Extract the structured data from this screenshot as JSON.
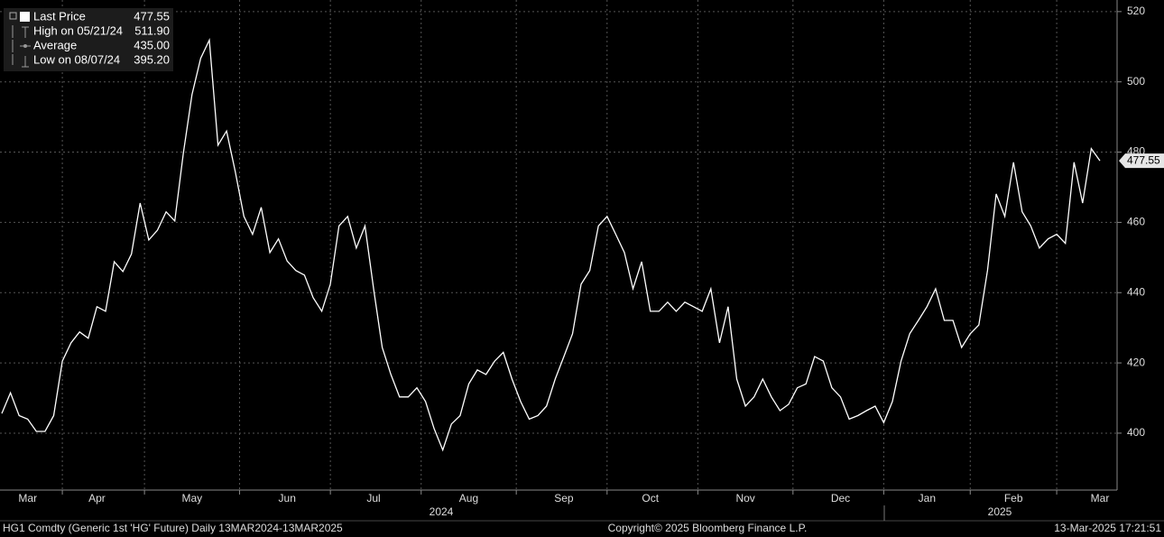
{
  "chart_data": {
    "type": "line",
    "categories": [
      null,
      null,
      null,
      "Mar",
      null,
      null,
      null,
      null,
      null,
      null,
      null,
      "Apr",
      null,
      null,
      null,
      null,
      null,
      null,
      null,
      null,
      null,
      null,
      "May",
      null,
      null,
      null,
      null,
      null,
      null,
      null,
      null,
      null,
      null,
      "Jun",
      null,
      null,
      null,
      null,
      null,
      null,
      null,
      null,
      null,
      "Jul",
      null,
      null,
      null,
      null,
      null,
      null,
      null,
      null,
      null,
      null,
      "Aug",
      null,
      null,
      null,
      null,
      null,
      null,
      null,
      null,
      null,
      null,
      "Sep",
      null,
      null,
      null,
      null,
      null,
      null,
      null,
      null,
      null,
      "Oct",
      null,
      null,
      null,
      null,
      null,
      null,
      null,
      null,
      null,
      null,
      "Nov",
      null,
      null,
      null,
      null,
      null,
      null,
      null,
      null,
      null,
      null,
      "Dec",
      null,
      null,
      null,
      null,
      null,
      null,
      null,
      null,
      null,
      "Jan",
      null,
      null,
      null,
      null,
      null,
      null,
      null,
      null,
      null,
      "Feb",
      null,
      null,
      null,
      null,
      null,
      null,
      null,
      null,
      null,
      "Mar"
    ],
    "series": [
      {
        "name": "Last Price",
        "color": "#ffffff",
        "values": [
          405.6,
          411.5,
          405,
          404,
          400.5,
          400.5,
          405,
          420.5,
          425.7,
          428.8,
          427,
          436,
          434.7,
          448.8,
          446,
          451,
          465.5,
          455,
          457.8,
          463,
          460.4,
          479.7,
          496.4,
          506.7,
          511.9,
          482,
          486,
          474.5,
          461.7,
          456.6,
          464.3,
          451.4,
          455.3,
          449,
          446.3,
          445,
          438.6,
          434.7,
          442.4,
          459,
          461.7,
          452.7,
          459,
          441,
          424.4,
          416.7,
          410.3,
          410.3,
          412.9,
          409,
          401.3,
          395.2,
          402.6,
          405,
          414,
          418,
          416.7,
          420.5,
          423,
          415.4,
          409,
          404,
          405,
          407.7,
          415.4,
          421.8,
          428.3,
          442.4,
          446.3,
          459,
          461.7,
          456.6,
          451.4,
          441.1,
          448.8,
          434.7,
          434.7,
          437.3,
          434.7,
          437.3,
          436,
          434.7,
          441.1,
          425.7,
          436,
          415.4,
          407.7,
          410.3,
          415.4,
          410.3,
          406.4,
          408.2,
          412.9,
          414,
          421.8,
          420.5,
          412.9,
          410.3,
          404,
          405,
          406.4,
          407.7,
          403,
          409,
          420.5,
          428.3,
          432.1,
          436,
          441.1,
          432.1,
          432.1,
          424.4,
          428.3,
          430.8,
          446.3,
          468.1,
          461.7,
          477.1,
          463,
          459,
          452.7,
          455.3,
          456.6,
          454,
          477.1,
          465.5,
          481,
          477.55
        ]
      }
    ],
    "ylim": [
      383.8,
      523.3
    ],
    "yticks": [
      400,
      420,
      440,
      460,
      480,
      500,
      520
    ],
    "grid": true,
    "stats": [
      {
        "label": "High on 05/21/24",
        "value": 511.9,
        "value_label": "511.90"
      },
      {
        "label": "Average",
        "value": 435,
        "value_label": "435.00"
      },
      {
        "label": "Low on 08/07/24",
        "value": 395.2,
        "value_label": "395.20"
      }
    ],
    "year_labels": [
      "2024",
      "2025"
    ],
    "footer": {
      "left": "HG1 Comdty (Generic 1st 'HG' Future)  Daily 13MAR2024-13MAR2025",
      "center": "Copyright© 2025 Bloomberg Finance L.P.",
      "right": "13-Mar-2025 17:21:51"
    }
  }
}
